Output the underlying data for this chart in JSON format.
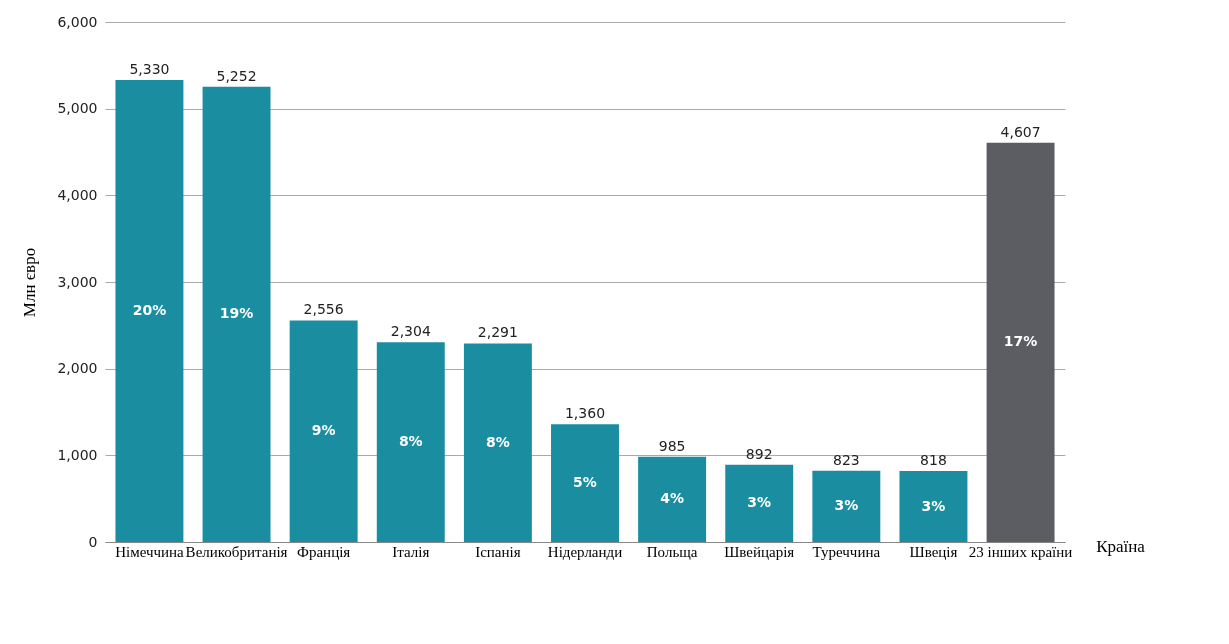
{
  "chart_data": {
    "type": "bar",
    "xlabel": "Країна",
    "ylabel": "Млн євро",
    "categories": [
      "Німеччина",
      "Великобританія",
      "Франція",
      "Італія",
      "Іспанія",
      "Нідерланди",
      "Польща",
      "Швейцарія",
      "Туреччина",
      "Швеція",
      "23 інших країни"
    ],
    "values": [
      5330,
      5252,
      2556,
      2304,
      2291,
      1360,
      985,
      892,
      823,
      818,
      4607
    ],
    "colors": [
      "#1b8da1",
      "#1b8da1",
      "#1b8da1",
      "#1b8da1",
      "#1b8da1",
      "#1b8da1",
      "#1b8da1",
      "#1b8da1",
      "#1b8da1",
      "#1b8da1",
      "#5b5d62"
    ],
    "ylim": [
      0,
      6000
    ],
    "yticks": [
      0,
      {
        "value": 1000,
        "label": "1,000"
      },
      {
        "value": 2000,
        "label": "2,000"
      },
      {
        "value": 3000,
        "label": "3,000"
      },
      {
        "value": 4000,
        "label": "4,000"
      },
      {
        "value": 5000,
        "label": "5,000"
      },
      {
        "value": 6000,
        "label": "6,000"
      }
    ],
    "grid": "y",
    "value_labels": [
      "5,330",
      "5,252",
      "2,556",
      "2,304",
      "2,291",
      "1,360",
      "985",
      "892",
      "823",
      "818",
      "4,607"
    ],
    "annotations": [
      "20%",
      "19%",
      "9%",
      "8%",
      "8%",
      "5%",
      "4%",
      "3%",
      "3%",
      "3%",
      "17%"
    ]
  }
}
